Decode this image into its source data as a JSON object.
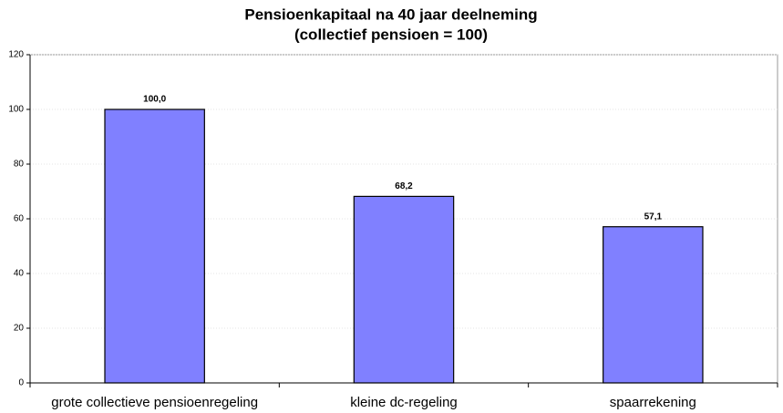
{
  "chart_data": {
    "type": "bar",
    "title": "Pensioenkapitaal na 40 jaar deelneming",
    "subtitle": "(collectief pensioen = 100)",
    "categories": [
      "grote collectieve pensioenregeling",
      "kleine dc-regeling",
      "spaarrekening"
    ],
    "values": [
      100,
      68.2,
      57.1
    ],
    "value_labels": [
      "100,0",
      "68,2",
      "57,1"
    ],
    "color": "#8080ff",
    "ylim": [
      0,
      120
    ],
    "yticks": [
      0,
      20,
      40,
      60,
      80,
      100,
      120
    ],
    "grid": true
  }
}
